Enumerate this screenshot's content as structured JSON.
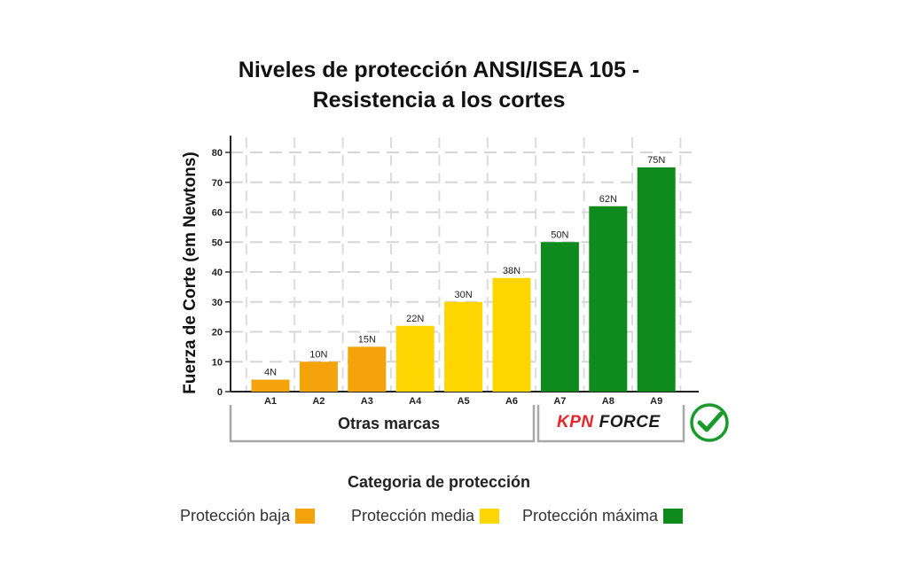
{
  "chart_data": {
    "type": "bar",
    "title_lines": [
      "Niveles de protección ANSI/ISEA 105 -",
      "Resistencia a los cortes"
    ],
    "categories": [
      "A1",
      "A2",
      "A3",
      "A4",
      "A5",
      "A6",
      "A7",
      "A8",
      "A9"
    ],
    "values": [
      4,
      10,
      15,
      22,
      30,
      38,
      50,
      62,
      75
    ],
    "data_labels": [
      "4N",
      "10N",
      "15N",
      "22N",
      "30N",
      "38N",
      "50N",
      "62N",
      "75N"
    ],
    "bar_levels": [
      "baja",
      "baja",
      "baja",
      "media",
      "media",
      "media",
      "maxima",
      "maxima",
      "maxima"
    ],
    "ylabel": "Fuerza de Corte (em Newtons)",
    "xlabel": "Categoria de protección",
    "ylim": [
      0,
      85
    ],
    "yticks": [
      0,
      10,
      20,
      30,
      40,
      50,
      60,
      70,
      80
    ],
    "grid": true,
    "groups": [
      {
        "label": "Otras marcas",
        "categories": [
          "A1",
          "A2",
          "A3",
          "A4",
          "A5",
          "A6"
        ]
      },
      {
        "brand_kpn": "KPN",
        "brand_force": "FORCE",
        "categories": [
          "A7",
          "A8",
          "A9"
        ]
      }
    ],
    "legend": [
      {
        "label": "Protección baja",
        "level": "baja",
        "color": "#F5A30A"
      },
      {
        "label": "Protección media",
        "level": "media",
        "color": "#FFD500"
      },
      {
        "label": "Protección máxima",
        "level": "maxima",
        "color": "#0E8B1C"
      }
    ],
    "colors": {
      "baja": "#F5A30A",
      "media": "#FFD500",
      "maxima": "#0E8B1C"
    }
  },
  "check_icon": "checkmark-circle-icon"
}
